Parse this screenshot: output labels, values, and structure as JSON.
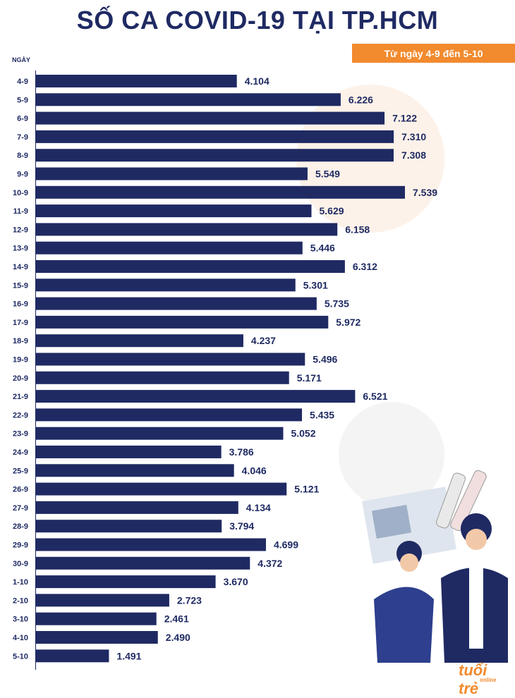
{
  "header": {
    "title": "SỐ CA COVID-19 TẠI TP.HCM",
    "date_range": "Từ ngày 4-9 đến 5-10"
  },
  "colors": {
    "bar": "#1f2a63",
    "accent": "#f28a2e",
    "text": "#1f2a63"
  },
  "logo": {
    "text": "tuổi trẻ",
    "sub": "online"
  },
  "chart_data": {
    "type": "bar",
    "orientation": "horizontal",
    "ylabel": "NGÀY",
    "xlabel": "",
    "grid": false,
    "legend": "none",
    "categories": [
      "4-9",
      "5-9",
      "6-9",
      "7-9",
      "8-9",
      "9-9",
      "10-9",
      "11-9",
      "12-9",
      "13-9",
      "14-9",
      "15-9",
      "16-9",
      "17-9",
      "18-9",
      "19-9",
      "20-9",
      "21-9",
      "22-9",
      "23-9",
      "24-9",
      "25-9",
      "26-9",
      "27-9",
      "28-9",
      "29-9",
      "30-9",
      "1-10",
      "2-10",
      "3-10",
      "4-10",
      "5-10"
    ],
    "values": [
      4104,
      6226,
      7122,
      7310,
      7308,
      5549,
      7539,
      5629,
      6158,
      5446,
      6312,
      5301,
      5735,
      5972,
      4237,
      5496,
      5171,
      6521,
      5435,
      5052,
      3786,
      4046,
      5121,
      4134,
      3794,
      4699,
      4372,
      3670,
      2723,
      2461,
      2490,
      1491
    ],
    "value_labels": [
      "4.104",
      "6.226",
      "7.122",
      "7.310",
      "7.308",
      "5.549",
      "7.539",
      "5.629",
      "6.158",
      "5.446",
      "6.312",
      "5.301",
      "5.735",
      "5.972",
      "4.237",
      "5.496",
      "5.171",
      "6.521",
      "5.435",
      "5.052",
      "3.786",
      "4.046",
      "5.121",
      "4.134",
      "3.794",
      "4.699",
      "4.372",
      "3.670",
      "2.723",
      "2.461",
      "2.490",
      "1.491"
    ],
    "xlim": [
      0,
      7539
    ]
  }
}
